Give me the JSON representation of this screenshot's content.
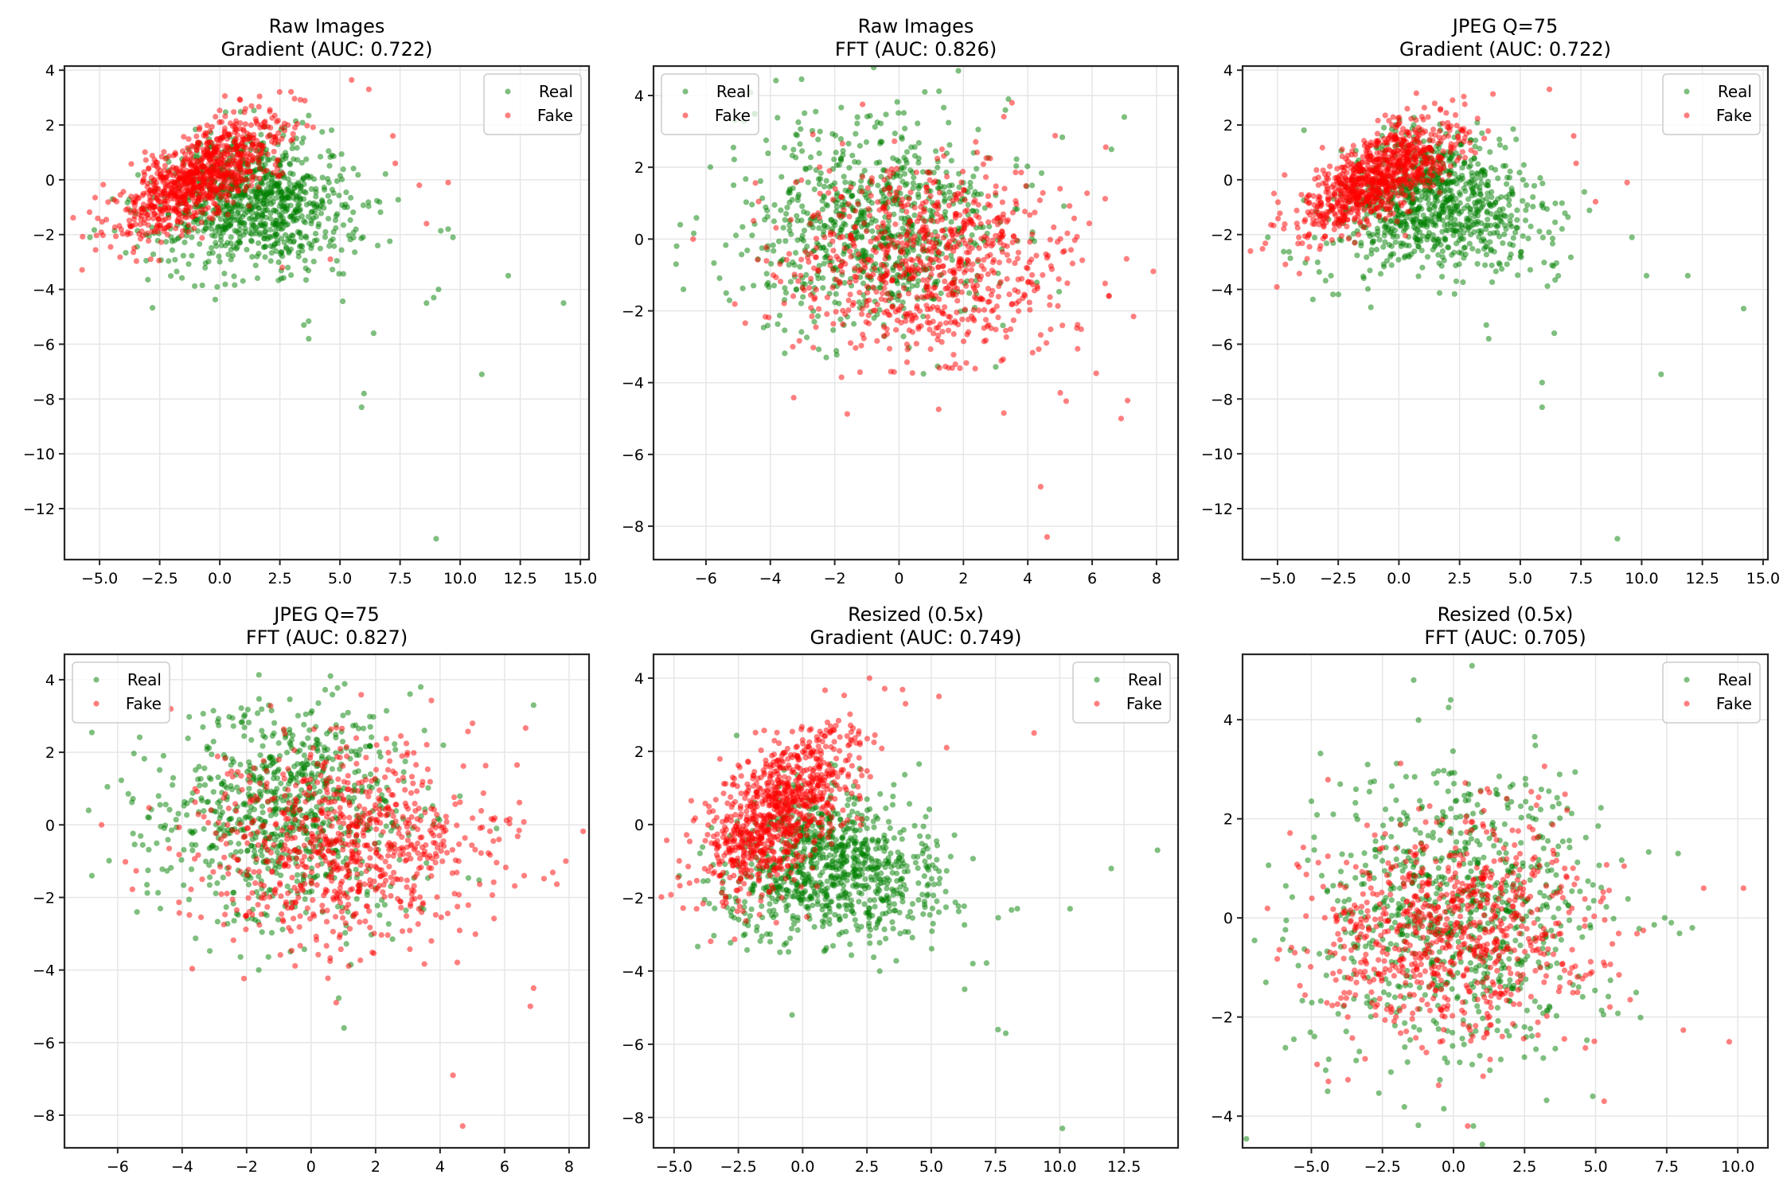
{
  "figure": {
    "rows": 2,
    "cols": 3,
    "background": "#ffffff"
  },
  "legend_labels": {
    "real": "Real",
    "fake": "Fake"
  },
  "colors": {
    "real": "#008000",
    "fake": "#ff0000",
    "point_alpha": 0.5,
    "grid": "#e6e6e6",
    "axis": "#262626"
  },
  "chart_data": [
    {
      "type": "scatter",
      "title_line1": "Raw Images",
      "title_line2": "Gradient (AUC: 0.722)",
      "xlim": [
        -6.46,
        15.36
      ],
      "ylim": [
        -13.86,
        4.15
      ],
      "xticks": [
        -5,
        -2.5,
        0,
        2.5,
        5,
        7.5,
        10,
        12.5,
        15
      ],
      "xtick_labels": [
        "−5.0",
        "−2.5",
        "0.0",
        "2.5",
        "5.0",
        "7.5",
        "10.0",
        "12.5",
        "15.0"
      ],
      "yticks": [
        4,
        2,
        0,
        -2,
        -4,
        -6,
        -8,
        -10,
        -12
      ],
      "ytick_labels": [
        "4",
        "2",
        "0",
        "−2",
        "−4",
        "−6",
        "−8",
        "−10",
        "−12"
      ],
      "grid": true,
      "legend": "top-right",
      "series": [
        {
          "name": "Real",
          "n": 900,
          "center": [
            0.5,
            -0.6
          ],
          "spread": [
            2.4,
            1.2
          ],
          "skew": "right-down",
          "outliers": [
            [
              14.3,
              -4.5
            ],
            [
              12.0,
              -3.5
            ],
            [
              10.9,
              -7.1
            ],
            [
              9.0,
              -13.1
            ],
            [
              6.0,
              -7.8
            ],
            [
              5.9,
              -8.3
            ],
            [
              3.5,
              -5.3
            ],
            [
              3.7,
              -5.8
            ],
            [
              6.4,
              -5.6
            ],
            [
              9.7,
              -2.1
            ],
            [
              9.5,
              -1.8
            ],
            [
              8.9,
              -4.3
            ],
            [
              9.1,
              -4.0
            ],
            [
              8.6,
              -4.5
            ],
            [
              -5.4,
              -2.1
            ]
          ]
        },
        {
          "name": "Fake",
          "n": 900,
          "center": [
            -0.8,
            0.1
          ],
          "spread": [
            1.7,
            1.0
          ],
          "skew": "diagonal",
          "outliers": [
            [
              6.2,
              3.3
            ],
            [
              9.5,
              -0.1
            ],
            [
              8.3,
              -0.2
            ],
            [
              7.3,
              0.6
            ],
            [
              7.2,
              1.6
            ],
            [
              8.6,
              -1.6
            ],
            [
              4.6,
              -2.9
            ],
            [
              2.6,
              -3.2
            ]
          ]
        }
      ]
    },
    {
      "type": "scatter",
      "title_line1": "Raw Images",
      "title_line2": "FFT (AUC: 0.826)",
      "xlim": [
        -7.63,
        8.67
      ],
      "ylim": [
        -8.93,
        4.82
      ],
      "xticks": [
        -6,
        -4,
        -2,
        0,
        2,
        4,
        6,
        8
      ],
      "xtick_labels": [
        "−6",
        "−4",
        "−2",
        "0",
        "2",
        "4",
        "6",
        "8"
      ],
      "yticks": [
        4,
        2,
        0,
        -2,
        -4,
        -6,
        -8
      ],
      "ytick_labels": [
        "4",
        "2",
        "0",
        "−2",
        "−4",
        "−6",
        "−8"
      ],
      "grid": true,
      "legend": "top-left",
      "series": [
        {
          "name": "Real",
          "n": 800,
          "center": [
            -0.8,
            0.4
          ],
          "spread": [
            2.0,
            1.5
          ],
          "skew": "none",
          "outliers": [
            [
              -6.8,
              0.4
            ],
            [
              -6.7,
              -1.4
            ],
            [
              7.0,
              3.4
            ],
            [
              6.6,
              2.5
            ],
            [
              0.8,
              4.1
            ],
            [
              3.4,
              3.9
            ]
          ]
        },
        {
          "name": "Fake",
          "n": 800,
          "center": [
            1.0,
            -0.6
          ],
          "spread": [
            2.3,
            1.4
          ],
          "skew": "none",
          "outliers": [
            [
              4.4,
              -6.9
            ],
            [
              4.6,
              -8.3
            ],
            [
              6.9,
              -5.0
            ],
            [
              7.1,
              -4.5
            ],
            [
              7.9,
              -0.9
            ],
            [
              -6.4,
              0.0
            ]
          ]
        }
      ]
    },
    {
      "type": "scatter",
      "title_line1": "JPEG Q=75",
      "title_line2": "Gradient (AUC: 0.722)",
      "xlim": [
        -6.44,
        15.2
      ],
      "ylim": [
        -13.86,
        4.15
      ],
      "xticks": [
        -5,
        -2.5,
        0,
        2.5,
        5,
        7.5,
        10,
        12.5,
        15
      ],
      "xtick_labels": [
        "−5.0",
        "−2.5",
        "0.0",
        "2.5",
        "5.0",
        "7.5",
        "10.0",
        "12.5",
        "15.0"
      ],
      "yticks": [
        4,
        2,
        0,
        -2,
        -4,
        -6,
        -8,
        -10,
        -12
      ],
      "ytick_labels": [
        "4",
        "2",
        "0",
        "−2",
        "−4",
        "−6",
        "−8",
        "−10",
        "−12"
      ],
      "grid": true,
      "legend": "top-right",
      "series": [
        {
          "name": "Real",
          "n": 900,
          "center": [
            0.5,
            -0.6
          ],
          "spread": [
            2.4,
            1.2
          ],
          "skew": "right-down",
          "outliers": [
            [
              14.2,
              -4.7
            ],
            [
              11.9,
              -3.5
            ],
            [
              10.8,
              -7.1
            ],
            [
              9.0,
              -13.1
            ],
            [
              5.9,
              -7.4
            ],
            [
              5.9,
              -8.3
            ],
            [
              3.6,
              -5.3
            ],
            [
              3.7,
              -5.8
            ],
            [
              6.4,
              -5.6
            ],
            [
              9.6,
              -2.1
            ],
            [
              10.2,
              -3.5
            ],
            [
              -5.4,
              -2.1
            ]
          ]
        },
        {
          "name": "Fake",
          "n": 900,
          "center": [
            -0.8,
            0.1
          ],
          "spread": [
            1.7,
            1.0
          ],
          "skew": "diagonal",
          "outliers": [
            [
              6.2,
              3.3
            ],
            [
              9.4,
              -0.1
            ],
            [
              7.3,
              0.6
            ],
            [
              7.2,
              1.6
            ],
            [
              8.1,
              -0.8
            ]
          ]
        }
      ]
    },
    {
      "type": "scatter",
      "title_line1": "JPEG Q=75",
      "title_line2": "FFT (AUC: 0.827)",
      "xlim": [
        -7.65,
        8.62
      ],
      "ylim": [
        -8.9,
        4.7
      ],
      "xticks": [
        -6,
        -4,
        -2,
        0,
        2,
        4,
        6,
        8
      ],
      "xtick_labels": [
        "−6",
        "−4",
        "−2",
        "0",
        "2",
        "4",
        "6",
        "8"
      ],
      "yticks": [
        4,
        2,
        0,
        -2,
        -4,
        -6,
        -8
      ],
      "ytick_labels": [
        "4",
        "2",
        "0",
        "−2",
        "−4",
        "−6",
        "−8"
      ],
      "grid": true,
      "legend": "top-left",
      "series": [
        {
          "name": "Real",
          "n": 800,
          "center": [
            -0.8,
            0.4
          ],
          "spread": [
            2.0,
            1.5
          ],
          "skew": "none",
          "outliers": [
            [
              -6.9,
              0.4
            ],
            [
              -6.8,
              -1.4
            ],
            [
              6.9,
              3.3
            ],
            [
              0.6,
              4.1
            ],
            [
              3.4,
              3.8
            ],
            [
              -5.4,
              -2.4
            ]
          ]
        },
        {
          "name": "Fake",
          "n": 800,
          "center": [
            1.0,
            -0.6
          ],
          "spread": [
            2.3,
            1.4
          ],
          "skew": "none",
          "outliers": [
            [
              4.4,
              -6.9
            ],
            [
              4.7,
              -8.3
            ],
            [
              6.8,
              -5.0
            ],
            [
              6.9,
              -4.5
            ],
            [
              7.9,
              -1.0
            ],
            [
              -6.5,
              0.0
            ]
          ]
        }
      ]
    },
    {
      "type": "scatter",
      "title_line1": "Resized (0.5x)",
      "title_line2": "Gradient (AUC: 0.749)",
      "xlim": [
        -5.8,
        14.6
      ],
      "ylim": [
        -8.83,
        4.65
      ],
      "xticks": [
        -5,
        -2.5,
        0,
        2.5,
        5,
        7.5,
        10,
        12.5
      ],
      "xtick_labels": [
        "−5.0",
        "−2.5",
        "0.0",
        "2.5",
        "5.0",
        "7.5",
        "10.0",
        "12.5"
      ],
      "yticks": [
        4,
        2,
        0,
        -2,
        -4,
        -6,
        -8
      ],
      "ytick_labels": [
        "4",
        "2",
        "0",
        "−2",
        "−4",
        "−6",
        "−8"
      ],
      "grid": true,
      "legend": "top-right",
      "series": [
        {
          "name": "Real",
          "n": 900,
          "center": [
            0.3,
            -0.9
          ],
          "spread": [
            2.3,
            1.0
          ],
          "skew": "right-down",
          "outliers": [
            [
              13.8,
              -0.7
            ],
            [
              10.1,
              -8.3
            ],
            [
              7.6,
              -5.6
            ],
            [
              7.9,
              -5.7
            ],
            [
              12.0,
              -1.2
            ],
            [
              10.4,
              -2.3
            ],
            [
              6.3,
              -4.5
            ],
            [
              -4.8,
              -1.4
            ]
          ]
        },
        {
          "name": "Fake",
          "n": 900,
          "center": [
            -0.9,
            0.4
          ],
          "spread": [
            1.5,
            1.2
          ],
          "skew": "diagonal",
          "outliers": [
            [
              2.6,
              4.0
            ],
            [
              5.3,
              3.5
            ],
            [
              9.0,
              2.5
            ],
            [
              5.6,
              2.1
            ],
            [
              4.0,
              3.3
            ],
            [
              -4.4,
              -1.6
            ]
          ]
        }
      ]
    },
    {
      "type": "scatter",
      "title_line1": "Resized (0.5x)",
      "title_line2": "FFT (AUC: 0.705)",
      "xlim": [
        -7.42,
        11.06
      ],
      "ylim": [
        -4.64,
        5.32
      ],
      "xticks": [
        -5,
        -2.5,
        0,
        2.5,
        5,
        7.5,
        10
      ],
      "xtick_labels": [
        "−5.0",
        "−2.5",
        "0.0",
        "2.5",
        "5.0",
        "7.5",
        "10.0"
      ],
      "yticks": [
        4,
        2,
        0,
        -2,
        -4
      ],
      "ytick_labels": [
        "4",
        "2",
        "0",
        "−2",
        "−4"
      ],
      "grid": true,
      "legend": "top-right",
      "series": [
        {
          "name": "Real",
          "n": 800,
          "center": [
            0.2,
            0.2
          ],
          "spread": [
            2.5,
            1.45
          ],
          "skew": "none",
          "outliers": [
            [
              -1.4,
              4.8
            ],
            [
              -0.1,
              4.4
            ],
            [
              -6.6,
              -1.3
            ],
            [
              7.9,
              1.3
            ],
            [
              8.4,
              -0.2
            ],
            [
              0.7,
              -4.2
            ],
            [
              4.9,
              -3.6
            ]
          ]
        },
        {
          "name": "Fake",
          "n": 800,
          "center": [
            -0.1,
            -0.2
          ],
          "spread": [
            2.4,
            1.1
          ],
          "skew": "none",
          "outliers": [
            [
              10.2,
              0.6
            ],
            [
              9.7,
              -2.5
            ],
            [
              8.8,
              0.6
            ],
            [
              0.5,
              -4.2
            ],
            [
              5.3,
              -3.7
            ],
            [
              -4.4,
              -3.3
            ]
          ]
        }
      ]
    }
  ]
}
